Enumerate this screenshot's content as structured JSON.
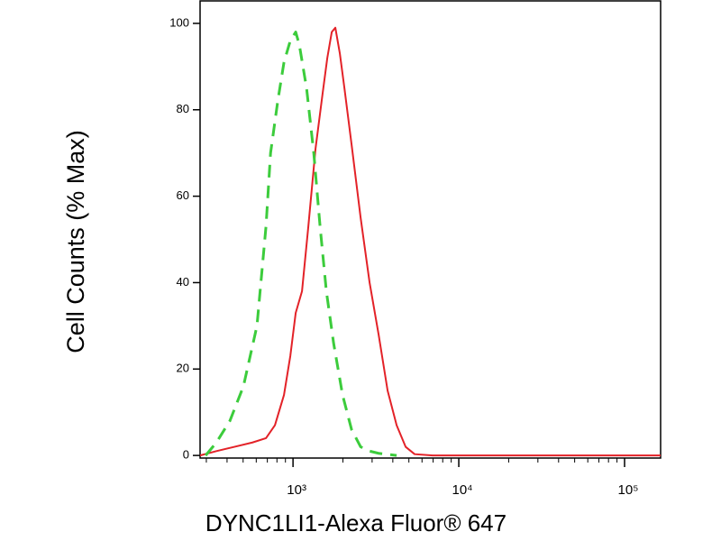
{
  "chart_data": {
    "type": "line",
    "xlabel": "DYNC1LI1-Alexa Fluor® 647",
    "ylabel": "Cell Counts (% Max)",
    "xscale": "log",
    "xlim": [
      275,
      165000
    ],
    "ylim": [
      -0.6,
      105.2
    ],
    "xticks": [
      {
        "value": 1000,
        "label": "10³"
      },
      {
        "value": 10000,
        "label": "10⁴"
      },
      {
        "value": 100000,
        "label": "10⁵"
      }
    ],
    "xminorticks": [
      300,
      400,
      500,
      600,
      700,
      800,
      900,
      2000,
      3000,
      4000,
      5000,
      6000,
      7000,
      8000,
      9000,
      20000,
      30000,
      40000,
      50000,
      60000,
      70000,
      80000,
      90000
    ],
    "yticks": [
      0,
      20,
      40,
      60,
      80,
      100
    ],
    "series": [
      {
        "color": "#e32228",
        "dashed": false,
        "x": [
          275,
          345,
          443,
          569,
          687,
          778,
          882,
          963,
          1038,
          1133,
          1237,
          1367,
          1511,
          1610,
          1713,
          1800,
          1917,
          2042,
          2255,
          2558,
          2897,
          3283,
          3721,
          4217,
          4778,
          5415,
          6954,
          31250,
          165000
        ],
        "values": [
          0,
          1,
          2,
          3,
          4,
          7,
          14,
          23,
          33,
          38,
          53,
          71,
          84,
          92,
          98,
          99,
          93,
          85,
          72,
          55,
          40,
          28,
          15,
          7,
          2,
          0.3,
          0,
          0,
          0
        ]
      },
      {
        "color": "#3ccc3c",
        "dashed": true,
        "x": [
          297,
          345,
          416,
          502,
          606,
          687,
          732,
          809,
          882,
          963,
          1038,
          1092,
          1207,
          1334,
          1456,
          1589,
          1757,
          1990,
          2255,
          2558,
          2897,
          3283,
          4217
        ],
        "values": [
          0,
          3,
          8,
          16,
          30,
          53,
          70,
          82,
          91,
          96,
          98,
          95,
          85,
          70,
          53,
          38,
          26,
          14,
          6,
          2,
          1,
          0.5,
          0
        ]
      }
    ]
  }
}
